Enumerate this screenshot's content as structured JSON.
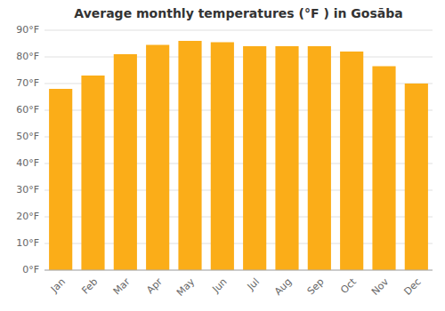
{
  "chart_data": {
    "type": "bar",
    "title": "Average monthly temperatures (°F ) in Gosāba",
    "categories": [
      "Jan",
      "Feb",
      "Mar",
      "Apr",
      "May",
      "Jun",
      "Jul",
      "Aug",
      "Sep",
      "Oct",
      "Nov",
      "Dec"
    ],
    "values": [
      68,
      73,
      81,
      84.5,
      86,
      85.5,
      84,
      84,
      84,
      82,
      76.5,
      70
    ],
    "color": "#FBAD18",
    "ylim": [
      0,
      90
    ],
    "yticks": [
      {
        "value": 0,
        "label": "0°F"
      },
      {
        "value": 10,
        "label": "10°F"
      },
      {
        "value": 20,
        "label": "20°F"
      },
      {
        "value": 30,
        "label": "30°F"
      },
      {
        "value": 40,
        "label": "40°F"
      },
      {
        "value": 50,
        "label": "50°F"
      },
      {
        "value": 60,
        "label": "60°F"
      },
      {
        "value": 70,
        "label": "70°F"
      },
      {
        "value": 80,
        "label": "80°F"
      },
      {
        "value": 90,
        "label": "90°F"
      }
    ],
    "grid": true
  }
}
